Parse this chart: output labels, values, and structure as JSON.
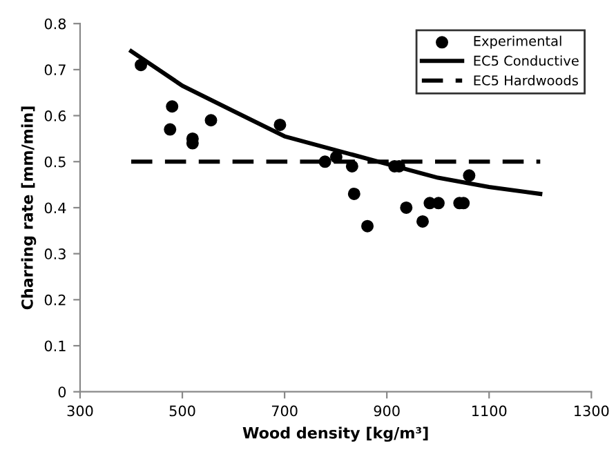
{
  "chart_data": {
    "type": "scatter",
    "xlabel": "Wood density [kg/m³]",
    "ylabel": "Charring rate [mm/min]",
    "xlim": [
      300,
      1300
    ],
    "xticks": [
      300,
      500,
      700,
      900,
      1100,
      1300
    ],
    "ylim": [
      0,
      0.8
    ],
    "yticks": [
      0,
      0.1,
      0.2,
      0.3,
      0.4,
      0.5,
      0.6,
      0.7,
      0.8
    ],
    "legend": "top right",
    "grid": false,
    "series": [
      {
        "name": "Experimental",
        "marker": "circle",
        "color": "#000000",
        "x": [
          419,
          480,
          476,
          520,
          520,
          556,
          691,
          779,
          801,
          832,
          836,
          862,
          915,
          924,
          938,
          970,
          984,
          1001,
          1042,
          1050,
          1061
        ],
        "values": [
          0.71,
          0.62,
          0.57,
          0.55,
          0.54,
          0.59,
          0.58,
          0.5,
          0.51,
          0.49,
          0.43,
          0.36,
          0.49,
          0.49,
          0.4,
          0.37,
          0.41,
          0.41,
          0.41,
          0.41,
          0.47
        ]
      },
      {
        "name": "EC5 Conductive",
        "type": "line",
        "line_style": "solid",
        "color": "#000000",
        "x": [
          400,
          500,
          600,
          700,
          800,
          900,
          1000,
          1100,
          1200
        ],
        "values": [
          0.74,
          0.665,
          0.61,
          0.555,
          0.525,
          0.495,
          0.465,
          0.445,
          0.43
        ]
      },
      {
        "name": "EC5 Hardwoods",
        "type": "line",
        "line_style": "dashed",
        "color": "#000000",
        "x": [
          400,
          1200
        ],
        "values": [
          0.5,
          0.5
        ]
      }
    ]
  }
}
